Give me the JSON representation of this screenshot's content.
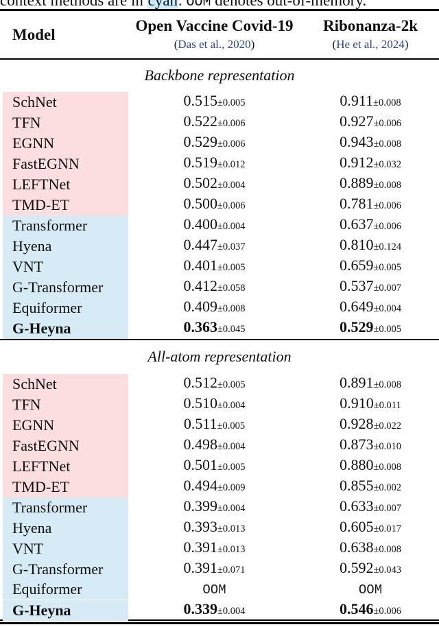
{
  "caption": {
    "part1": "context methods are in ",
    "highlight": "cyan",
    "part2": ". ",
    "oom": "OOM",
    "part3": " denotes out-of-memory."
  },
  "table": {
    "header": {
      "model_label": "Model",
      "paren_open": "(",
      "paren_close": ")",
      "columns": [
        {
          "title": "Open Vaccine Covid-19",
          "citation": "Das et al., 2020"
        },
        {
          "title": "Ribonanza-2k",
          "citation": "He et al., 2024"
        }
      ]
    },
    "colors": {
      "invariant_row_bg": "#fcdee0",
      "context_row_bg": "#d7ebf6",
      "citation_blue": "#2a4593",
      "cyan_highlight": "#c9edf8"
    },
    "sections": [
      {
        "title": "Backbone representation",
        "rows": [
          {
            "model": "SchNet",
            "group": "invariant",
            "bold": false,
            "col1": {
              "value": "0.515",
              "pm": "±0.005"
            },
            "col2": {
              "value": "0.911",
              "pm": "±0.008"
            }
          },
          {
            "model": "TFN",
            "group": "invariant",
            "bold": false,
            "col1": {
              "value": "0.522",
              "pm": "±0.006"
            },
            "col2": {
              "value": "0.927",
              "pm": "±0.006"
            }
          },
          {
            "model": "EGNN",
            "group": "invariant",
            "bold": false,
            "col1": {
              "value": "0.529",
              "pm": "±0.006"
            },
            "col2": {
              "value": "0.943",
              "pm": "±0.008"
            }
          },
          {
            "model": "FastEGNN",
            "group": "invariant",
            "bold": false,
            "col1": {
              "value": "0.519",
              "pm": "±0.012"
            },
            "col2": {
              "value": "0.912",
              "pm": "±0.032"
            }
          },
          {
            "model": "LEFTNet",
            "group": "invariant",
            "bold": false,
            "col1": {
              "value": "0.502",
              "pm": "±0.004"
            },
            "col2": {
              "value": "0.889",
              "pm": "±0.008"
            }
          },
          {
            "model": "TMD-ET",
            "group": "invariant",
            "bold": false,
            "col1": {
              "value": "0.500",
              "pm": "±0.006"
            },
            "col2": {
              "value": "0.781",
              "pm": "±0.006"
            }
          },
          {
            "model": "Transformer",
            "group": "context",
            "bold": false,
            "col1": {
              "value": "0.400",
              "pm": "±0.004"
            },
            "col2": {
              "value": "0.637",
              "pm": "±0.006"
            }
          },
          {
            "model": "Hyena",
            "group": "context",
            "bold": false,
            "col1": {
              "value": "0.447",
              "pm": "±0.037"
            },
            "col2": {
              "value": "0.810",
              "pm": "±0.124"
            }
          },
          {
            "model": "VNT",
            "group": "context",
            "bold": false,
            "col1": {
              "value": "0.401",
              "pm": "±0.005"
            },
            "col2": {
              "value": "0.659",
              "pm": "±0.005"
            }
          },
          {
            "model": "G-Transformer",
            "group": "context",
            "bold": false,
            "col1": {
              "value": "0.412",
              "pm": "±0.058"
            },
            "col2": {
              "value": "0.537",
              "pm": "±0.007"
            }
          },
          {
            "model": "Equiformer",
            "group": "context",
            "bold": false,
            "col1": {
              "value": "0.409",
              "pm": "±0.008"
            },
            "col2": {
              "value": "0.649",
              "pm": "±0.004"
            }
          },
          {
            "model": "G-Heyna",
            "group": "context",
            "bold": true,
            "col1": {
              "value": "0.363",
              "pm": "±0.045"
            },
            "col2": {
              "value": "0.529",
              "pm": "±0.005"
            }
          }
        ]
      },
      {
        "title": "All-atom representation",
        "rows": [
          {
            "model": "SchNet",
            "group": "invariant",
            "bold": false,
            "col1": {
              "value": "0.512",
              "pm": "±0.005"
            },
            "col2": {
              "value": "0.891",
              "pm": "±0.008"
            }
          },
          {
            "model": "TFN",
            "group": "invariant",
            "bold": false,
            "col1": {
              "value": "0.510",
              "pm": "±0.004"
            },
            "col2": {
              "value": "0.910",
              "pm": "±0.011"
            }
          },
          {
            "model": "EGNN",
            "group": "invariant",
            "bold": false,
            "col1": {
              "value": "0.511",
              "pm": "±0.005"
            },
            "col2": {
              "value": "0.928",
              "pm": "±0.022"
            }
          },
          {
            "model": "FastEGNN",
            "group": "invariant",
            "bold": false,
            "col1": {
              "value": "0.498",
              "pm": "±0.004"
            },
            "col2": {
              "value": "0.873",
              "pm": "±0.010"
            }
          },
          {
            "model": "LEFTNet",
            "group": "invariant",
            "bold": false,
            "col1": {
              "value": "0.501",
              "pm": "±0.005"
            },
            "col2": {
              "value": "0.880",
              "pm": "±0.008"
            }
          },
          {
            "model": "TMD-ET",
            "group": "invariant",
            "bold": false,
            "col1": {
              "value": "0.494",
              "pm": "±0.009"
            },
            "col2": {
              "value": "0.855",
              "pm": "±0.002"
            }
          },
          {
            "model": "Transformer",
            "group": "context",
            "bold": false,
            "col1": {
              "value": "0.399",
              "pm": "±0.004"
            },
            "col2": {
              "value": "0.633",
              "pm": "±0.007"
            }
          },
          {
            "model": "Hyena",
            "group": "context",
            "bold": false,
            "col1": {
              "value": "0.393",
              "pm": "±0.013"
            },
            "col2": {
              "value": "0.605",
              "pm": "±0.017"
            }
          },
          {
            "model": "VNT",
            "group": "context",
            "bold": false,
            "col1": {
              "value": "0.391",
              "pm": "±0.013"
            },
            "col2": {
              "value": "0.638",
              "pm": "±0.008"
            }
          },
          {
            "model": "G-Transformer",
            "group": "context",
            "bold": false,
            "col1": {
              "value": "0.391",
              "pm": "±0.071"
            },
            "col2": {
              "value": "0.592",
              "pm": "±0.043"
            }
          },
          {
            "model": "Equiformer",
            "group": "context",
            "bold": false,
            "col1": {
              "oom": "OOM"
            },
            "col2": {
              "oom": "OOM"
            }
          },
          {
            "model": "G-Heyna",
            "group": "context",
            "bold": true,
            "col1": {
              "value": "0.339",
              "pm": "±0.004"
            },
            "col2": {
              "value": "0.546",
              "pm": "±0.006"
            }
          }
        ]
      }
    ]
  }
}
